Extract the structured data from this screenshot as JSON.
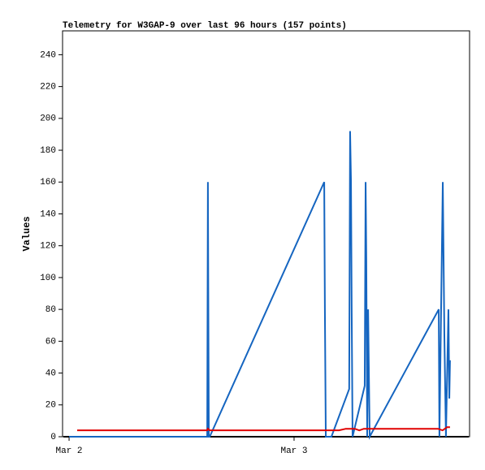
{
  "chart_data": {
    "type": "line",
    "title": "Telemetry for W3GAP-9 over last 96 hours (157 points)",
    "y_label": "Values",
    "xlim": [
      1.971,
      3.78
    ],
    "ylim": [
      0,
      255
    ],
    "xticks": [
      {
        "value": 2,
        "label": "Mar 2"
      },
      {
        "value": 3,
        "label": "Mar 3"
      }
    ],
    "yticks": [
      0,
      20,
      40,
      60,
      80,
      100,
      120,
      140,
      160,
      180,
      200,
      220,
      240
    ],
    "series": [
      {
        "color": "#000000",
        "x": [
          1.975,
          3.776
        ],
        "values": [
          0,
          0
        ]
      },
      {
        "color": "#1565c0",
        "x": [
          2.0,
          2.614,
          2.617,
          2.621,
          2.625,
          3.134,
          3.137,
          3.141,
          3.166,
          3.245,
          3.249,
          3.253,
          3.256,
          3.26,
          3.314,
          3.318,
          3.321,
          3.325,
          3.329,
          3.336,
          3.643,
          3.646,
          3.661,
          3.668,
          3.675,
          3.686,
          3.69,
          3.693
        ],
        "values": [
          0,
          0,
          160,
          0,
          0,
          160,
          80,
          0,
          0,
          30,
          192,
          160,
          80,
          0,
          32,
          160,
          112,
          0,
          80,
          0,
          80,
          0,
          160,
          64,
          0,
          80,
          24,
          48
        ]
      },
      {
        "color": "#e00000",
        "x": [
          2.036,
          2.614,
          2.617,
          2.625,
          3.2,
          3.23,
          3.27,
          3.29,
          3.31,
          3.64,
          3.66,
          3.68,
          3.693
        ],
        "values": [
          4,
          4,
          5,
          4,
          4,
          5,
          5,
          4,
          5,
          5,
          4,
          6,
          6
        ]
      }
    ]
  }
}
